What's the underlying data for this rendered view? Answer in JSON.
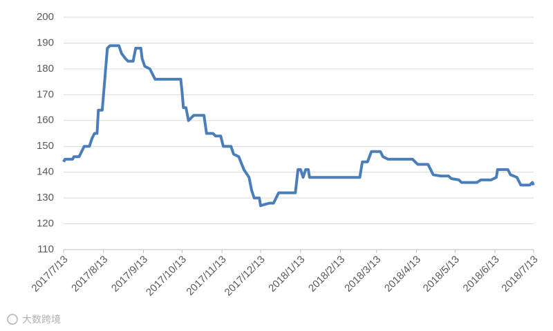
{
  "chart_data": {
    "type": "line",
    "x": [
      "2017/7/13",
      "2017/7/14",
      "2017/7/20",
      "2017/7/21",
      "2017/7/25",
      "2017/7/27",
      "2017/7/29",
      "2017/8/2",
      "2017/8/4",
      "2017/8/6",
      "2017/8/8",
      "2017/8/9",
      "2017/8/12",
      "2017/8/14",
      "2017/8/16",
      "2017/8/18",
      "2017/8/25",
      "2017/8/27",
      "2017/8/30",
      "2017/9/1",
      "2017/9/5",
      "2017/9/7",
      "2017/9/11",
      "2017/9/12",
      "2017/9/14",
      "2017/9/18",
      "2017/9/22",
      "2017/9/30",
      "2017/10/12",
      "2017/10/13",
      "2017/10/14",
      "2017/10/16",
      "2017/10/18",
      "2017/10/22",
      "2017/10/30",
      "2017/11/1",
      "2017/11/6",
      "2017/11/8",
      "2017/11/12",
      "2017/11/14",
      "2017/11/20",
      "2017/11/22",
      "2017/11/26",
      "2017/11/30",
      "2017/12/4",
      "2017/12/6",
      "2017/12/8",
      "2017/12/12",
      "2017/12/13",
      "2017/12/16",
      "2017/12/20",
      "2017/12/23",
      "2017/12/27",
      "2018/1/9",
      "2018/1/11",
      "2018/1/13",
      "2018/1/15",
      "2018/1/17",
      "2018/1/19",
      "2018/1/20",
      "2018/2/28",
      "2018/3/2",
      "2018/3/6",
      "2018/3/9",
      "2018/3/16",
      "2018/3/18",
      "2018/3/22",
      "2018/4/10",
      "2018/4/12",
      "2018/4/14",
      "2018/4/22",
      "2018/4/26",
      "2018/5/2",
      "2018/5/8",
      "2018/5/10",
      "2018/5/16",
      "2018/5/18",
      "2018/5/30",
      "2018/6/2",
      "2018/6/10",
      "2018/6/14",
      "2018/6/15",
      "2018/6/23",
      "2018/6/25",
      "2018/6/30",
      "2018/7/3",
      "2018/7/10",
      "2018/7/12",
      "2018/7/13"
    ],
    "series": [
      {
        "color": "#4a7ebb",
        "values": [
          144,
          145,
          145,
          146,
          146,
          148,
          150,
          150,
          153,
          155,
          155,
          164,
          164,
          176,
          188,
          189,
          189,
          186,
          184,
          183,
          183,
          188,
          188,
          184,
          181,
          180,
          176,
          176,
          176,
          171,
          165,
          165,
          160,
          162,
          162,
          155,
          155,
          154,
          154,
          150,
          150,
          147,
          146,
          141,
          138,
          133,
          130,
          130,
          127,
          127.5,
          128,
          128,
          132,
          132,
          141,
          141,
          138,
          141,
          141,
          138,
          138,
          144,
          144,
          148,
          148,
          146,
          145,
          145,
          144,
          143,
          143,
          139,
          138.5,
          138.5,
          137.5,
          137,
          136,
          136,
          137,
          137,
          138,
          141,
          141,
          139,
          138,
          135,
          135,
          136,
          135
        ]
      }
    ],
    "xlim": [
      "2017/7/13",
      "2018/7/13"
    ],
    "xticks": [
      "2017/7/13",
      "2017/8/13",
      "2017/9/13",
      "2017/10/13",
      "2017/11/13",
      "2017/12/13",
      "2018/1/13",
      "2018/2/13",
      "2018/3/13",
      "2018/4/13",
      "2018/5/13",
      "2018/6/13",
      "2018/7/13"
    ],
    "ylim": [
      110,
      200
    ],
    "yticks": [
      110,
      120,
      130,
      140,
      150,
      160,
      170,
      180,
      190,
      200
    ],
    "grid": true,
    "watermark": "大数跨境"
  }
}
